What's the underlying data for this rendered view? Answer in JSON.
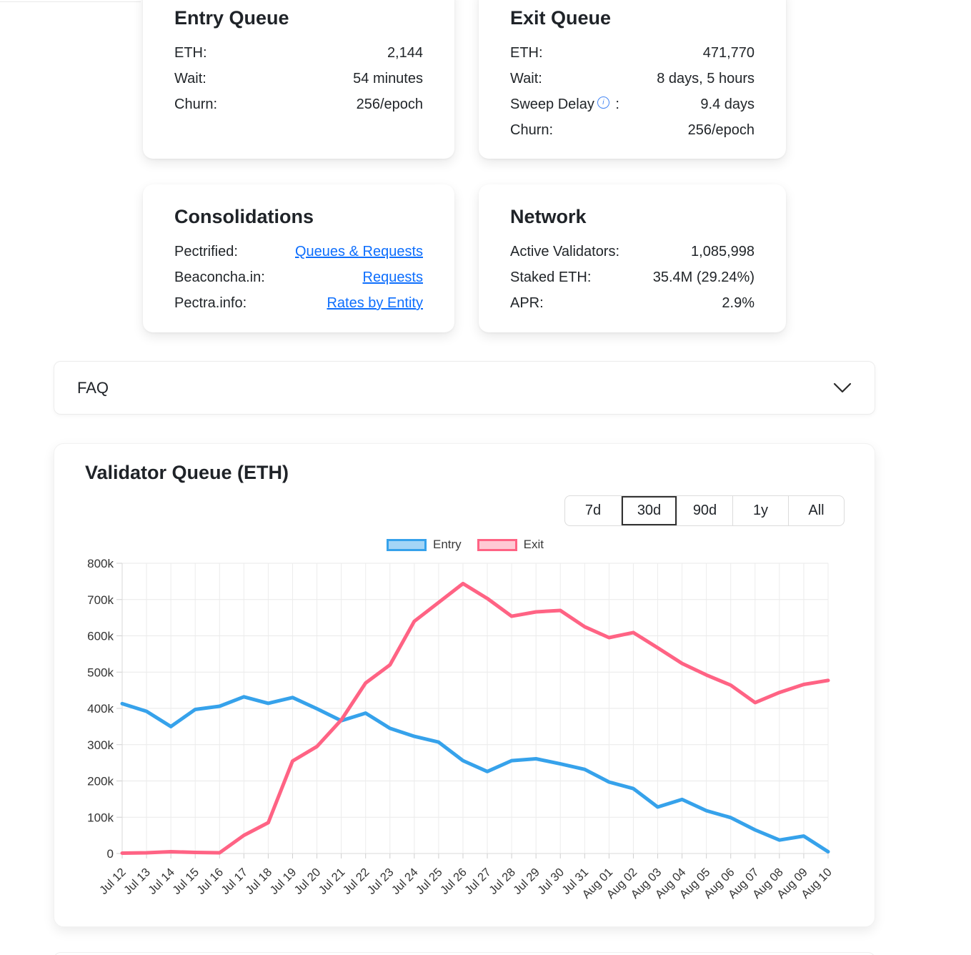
{
  "cards": {
    "entry_queue": {
      "title": "Entry Queue",
      "rows": [
        {
          "label": "ETH:",
          "value": "2,144"
        },
        {
          "label": "Wait:",
          "value": "54 minutes"
        },
        {
          "label": "Churn:",
          "value": "256/epoch"
        }
      ]
    },
    "exit_queue": {
      "title": "Exit Queue",
      "rows": [
        {
          "label": "ETH:",
          "value": "471,770"
        },
        {
          "label": "Wait:",
          "value": "8 days, 5 hours"
        },
        {
          "label": "Sweep Delay",
          "info_icon": true,
          "label_suffix": " :",
          "value": "9.4 days"
        },
        {
          "label": "Churn:",
          "value": "256/epoch"
        }
      ]
    },
    "consolidations": {
      "title": "Consolidations",
      "rows": [
        {
          "label": "Pectrified:",
          "link": "Queues & Requests"
        },
        {
          "label": "Beaconcha.in:",
          "link": "Requests"
        },
        {
          "label": "Pectra.info:",
          "link": "Rates by Entity"
        }
      ]
    },
    "network": {
      "title": "Network",
      "rows": [
        {
          "label": "Active Validators:",
          "value": "1,085,998"
        },
        {
          "label": "Staked ETH:",
          "value": "35.4M (29.24%)"
        },
        {
          "label": "APR:",
          "value": "2.9%"
        }
      ]
    }
  },
  "faq": {
    "label": "FAQ",
    "chevron": "chevron-down"
  },
  "chart_card": {
    "title": "Validator Queue (ETH)",
    "ranges": [
      {
        "label": "7d",
        "active": false
      },
      {
        "label": "30d",
        "active": true
      },
      {
        "label": "90d",
        "active": false
      },
      {
        "label": "1y",
        "active": false
      },
      {
        "label": "All",
        "active": false
      }
    ]
  },
  "chart_data": {
    "type": "line",
    "title": "Validator Queue (ETH)",
    "xlabel": "",
    "ylabel": "",
    "ylim": [
      0,
      800000
    ],
    "ytick_step": 100000,
    "ytick_format": "k",
    "grid": true,
    "legend_position": "top",
    "categories": [
      "Jul 12",
      "Jul 13",
      "Jul 14",
      "Jul 15",
      "Jul 16",
      "Jul 17",
      "Jul 18",
      "Jul 19",
      "Jul 20",
      "Jul 21",
      "Jul 22",
      "Jul 23",
      "Jul 24",
      "Jul 25",
      "Jul 26",
      "Jul 27",
      "Jul 28",
      "Jul 29",
      "Jul 30",
      "Jul 31",
      "Aug 01",
      "Aug 02",
      "Aug 03",
      "Aug 04",
      "Aug 05",
      "Aug 06",
      "Aug 07",
      "Aug 08",
      "Aug 09",
      "Aug 10"
    ],
    "series": [
      {
        "name": "Entry",
        "color": "#36A2EB",
        "fill_alpha": 0.45,
        "values": [
          413000,
          392000,
          350000,
          397000,
          406000,
          432000,
          414000,
          430000,
          399000,
          366000,
          387000,
          345000,
          323000,
          307000,
          256000,
          226000,
          256000,
          261000,
          247000,
          232000,
          197000,
          179000,
          128000,
          149000,
          118000,
          99000,
          65000,
          37000,
          48000,
          5000
        ]
      },
      {
        "name": "Exit",
        "color": "#FF6384",
        "fill_alpha": 0.35,
        "values": [
          1000,
          2000,
          5000,
          3000,
          2000,
          50000,
          85000,
          255000,
          295000,
          368000,
          470000,
          520000,
          640000,
          692000,
          744000,
          703000,
          654000,
          666000,
          670000,
          625000,
          595000,
          609000,
          567000,
          524000,
          492000,
          464000,
          416000,
          444000,
          466000,
          477000
        ]
      }
    ]
  }
}
